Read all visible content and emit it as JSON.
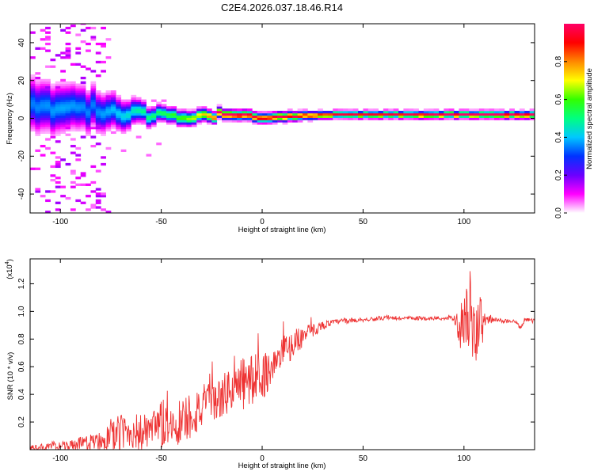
{
  "chart_data": [
    {
      "type": "heatmap",
      "title": "C2E4.2026.037.18.46.R14",
      "xlabel": "Height of straight line (km)",
      "ylabel": "Frequency (Hz)",
      "xlim": [
        -115,
        135
      ],
      "ylim": [
        -50,
        50
      ],
      "xticks": [
        "-100",
        "-50",
        "0",
        "50",
        "100"
      ],
      "yticks": [
        "40",
        "20",
        "0",
        "-20",
        "-40"
      ],
      "colorbar": {
        "label": "Normalized spectral amplitude",
        "range": [
          0.0,
          1.0
        ],
        "ticks": [
          "0.0",
          "0.2",
          "0.4",
          "0.6",
          "0.8"
        ],
        "colors": [
          "#ffffff",
          "#ff00ff",
          "#6a00ff",
          "#0033ff",
          "#00c8ff",
          "#00ff80",
          "#33ff00",
          "#ffff00",
          "#ff8800",
          "#ff0000",
          "#ff0066"
        ]
      },
      "ridge": {
        "description": "strong signal band near 0 Hz",
        "x": [
          -115,
          -100,
          -85,
          -70,
          -60,
          -50,
          -40,
          -30,
          -20,
          -10,
          0,
          10,
          30,
          50,
          70,
          90,
          110,
          135
        ],
        "center_freq": [
          7,
          6,
          5,
          3,
          2,
          1,
          -2,
          0,
          2,
          2,
          0,
          1,
          2,
          2,
          2,
          2,
          2,
          2
        ],
        "half_width": [
          10,
          9,
          8,
          6,
          4,
          3,
          3,
          2.5,
          2,
          2,
          2,
          2,
          1.5,
          1.5,
          1.5,
          1.5,
          1.5,
          1.5
        ],
        "peak_amplitude": [
          0.35,
          0.38,
          0.35,
          0.42,
          0.5,
          0.55,
          0.62,
          0.75,
          0.95,
          0.9,
          0.85,
          0.85,
          0.8,
          0.82,
          0.83,
          0.9,
          0.92,
          0.9
        ]
      }
    },
    {
      "type": "line",
      "xlabel": "Height of straight line (km)",
      "ylabel": "SNR (10 * v/v)",
      "yscale_label": "(x10",
      "yscale_exp": "4",
      "yscale_close": ")",
      "xlim": [
        -115,
        135
      ],
      "ylim": [
        0,
        1.38
      ],
      "xticks": [
        "-100",
        "-50",
        "0",
        "50",
        "100"
      ],
      "yticks": [
        "0.2",
        "0.4",
        "0.6",
        "0.8",
        "1.0",
        "1.2"
      ],
      "color": "#ee3333",
      "series": [
        {
          "name": "SNR",
          "x": [
            -115,
            -105,
            -95,
            -85,
            -80,
            -75,
            -70,
            -65,
            -60,
            -55,
            -50,
            -45,
            -40,
            -35,
            -30,
            -25,
            -20,
            -15,
            -10,
            -5,
            0,
            5,
            10,
            15,
            20,
            25,
            30,
            35,
            40,
            50,
            60,
            70,
            80,
            90,
            95,
            98,
            100,
            103,
            105,
            107,
            108,
            110,
            115,
            120,
            125,
            128,
            130,
            135
          ],
          "values": [
            0.01,
            0.02,
            0.03,
            0.05,
            0.07,
            0.09,
            0.12,
            0.13,
            0.12,
            0.13,
            0.17,
            0.18,
            0.2,
            0.26,
            0.3,
            0.33,
            0.38,
            0.44,
            0.47,
            0.5,
            0.53,
            0.6,
            0.69,
            0.76,
            0.82,
            0.86,
            0.9,
            0.92,
            0.93,
            0.94,
            0.95,
            0.95,
            0.95,
            0.95,
            0.95,
            0.88,
            0.95,
            1.0,
            0.8,
            0.95,
            0.86,
            0.94,
            0.94,
            0.93,
            0.93,
            0.88,
            0.94,
            0.93
          ],
          "noise_amplitude": [
            0.02,
            0.03,
            0.04,
            0.06,
            0.08,
            0.1,
            0.15,
            0.12,
            0.15,
            0.12,
            0.2,
            0.15,
            0.2,
            0.18,
            0.18,
            0.15,
            0.15,
            0.18,
            0.2,
            0.2,
            0.18,
            0.12,
            0.12,
            0.1,
            0.08,
            0.05,
            0.03,
            0.02,
            0.02,
            0.015,
            0.015,
            0.015,
            0.015,
            0.015,
            0.015,
            0.15,
            0.2,
            0.3,
            0.2,
            0.35,
            0.3,
            0.05,
            0.015,
            0.015,
            0.015,
            0.015,
            0.015,
            0.015
          ]
        }
      ]
    }
  ]
}
